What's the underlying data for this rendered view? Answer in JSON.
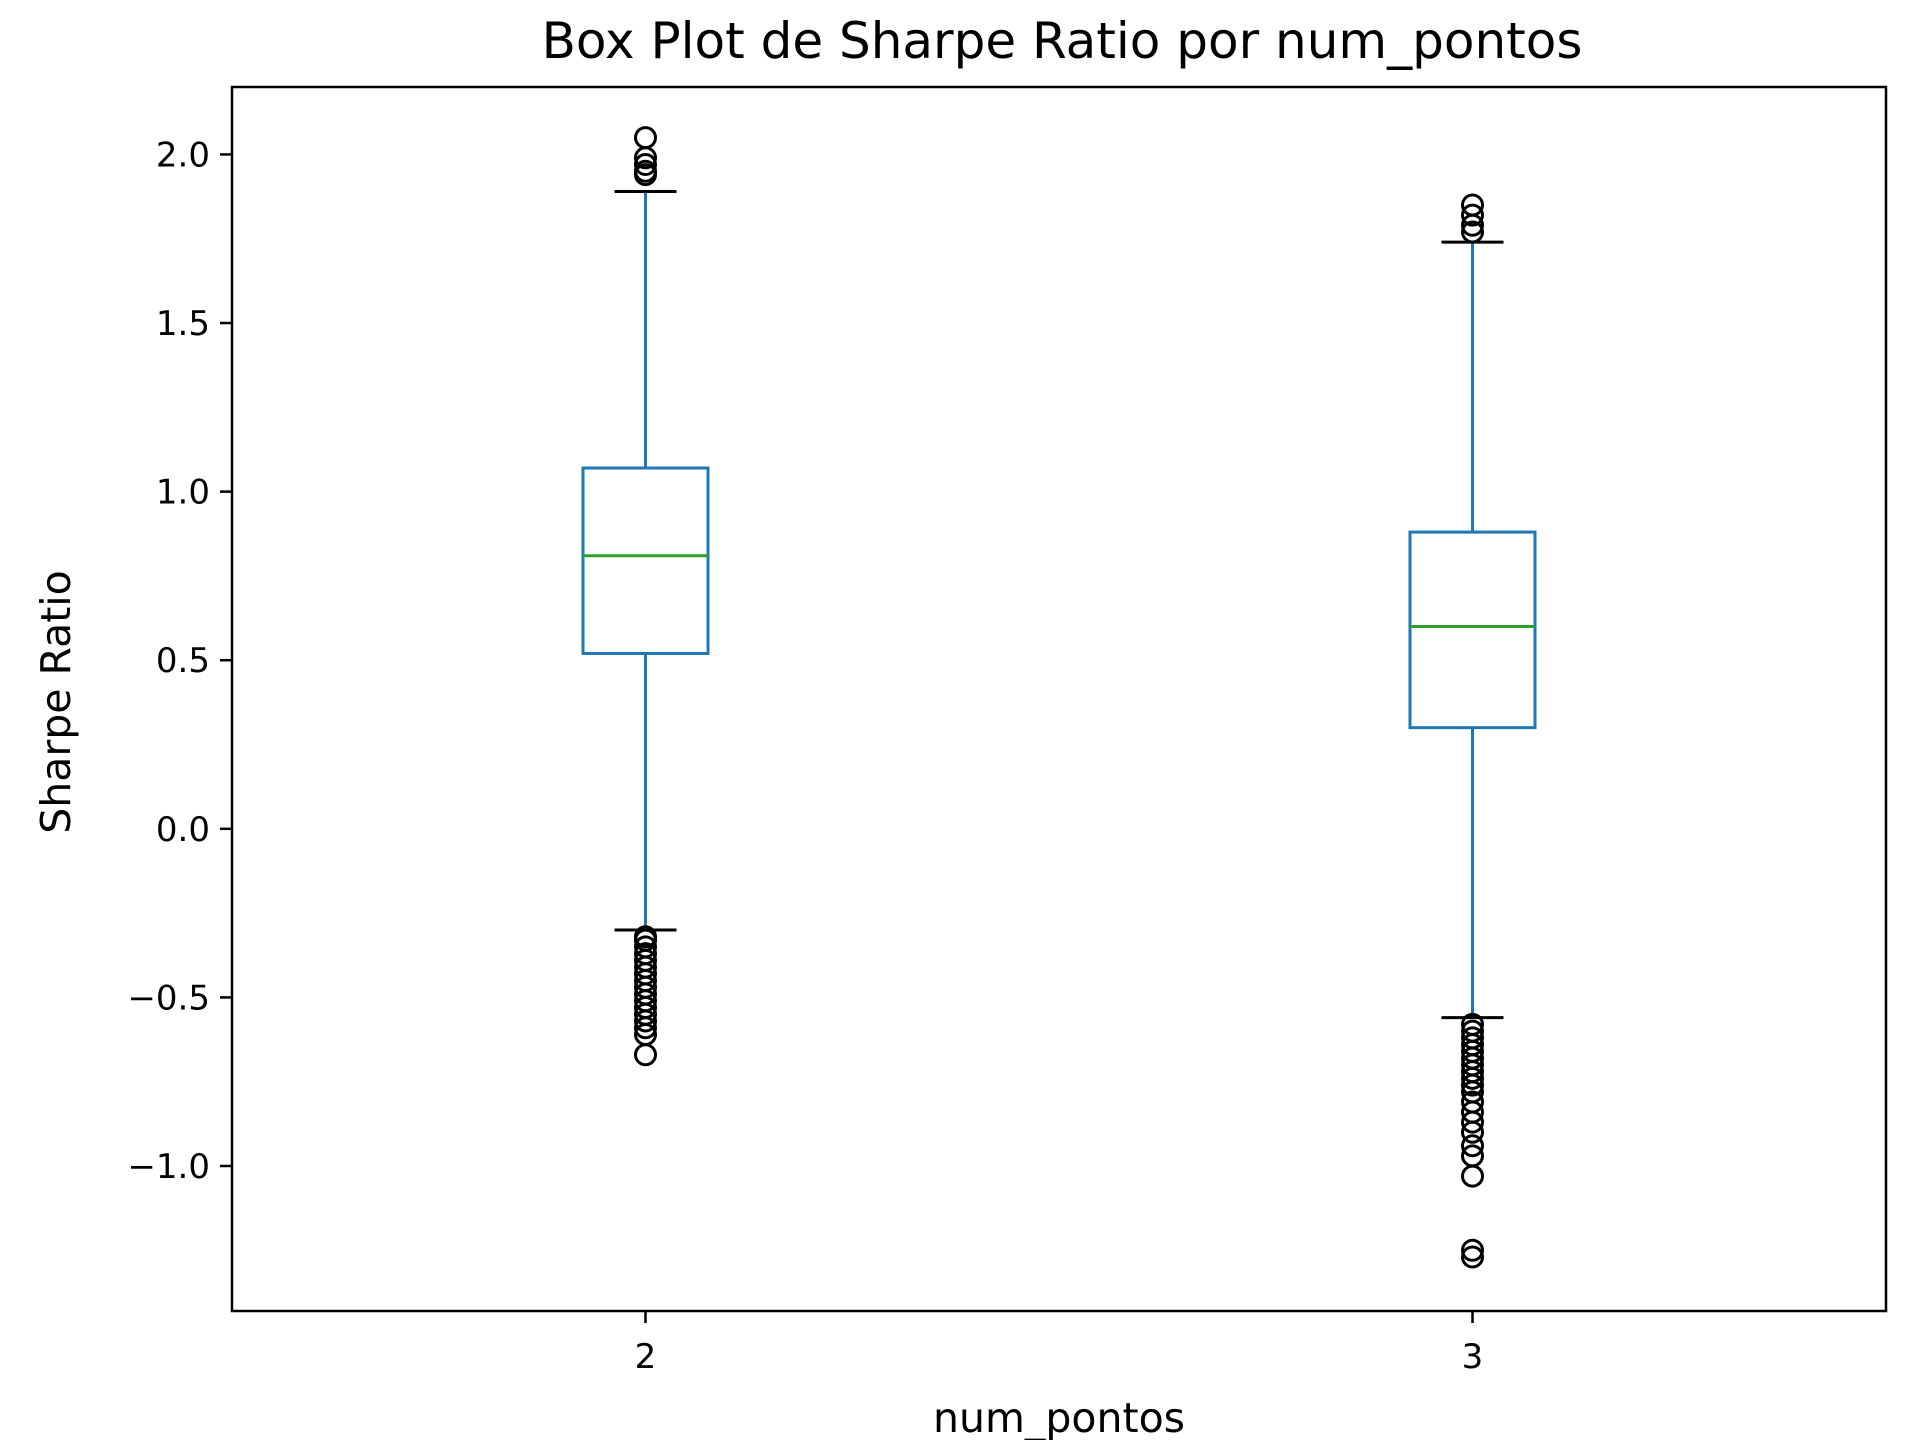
{
  "chart_data": {
    "type": "box",
    "title": "Box Plot de Sharpe Ratio por num_pontos",
    "xlabel": "num_pontos",
    "ylabel": "Sharpe Ratio",
    "ylim": [
      -1.43,
      2.2
    ],
    "yticks": [
      "2.0",
      "1.5",
      "1.0",
      "0.5",
      "0.0",
      "−0.5",
      "−1.0"
    ],
    "ytick_values": [
      2.0,
      1.5,
      1.0,
      0.5,
      0.0,
      -0.5,
      -1.0
    ],
    "categories": [
      "2",
      "3"
    ],
    "grid": false,
    "colors": {
      "box": "#1f77b4",
      "median": "#2ca02c",
      "cap": "#000000",
      "outlier": "#000000"
    },
    "boxes": [
      {
        "category": "2",
        "whisker_low": -0.3,
        "q1": 0.52,
        "median": 0.81,
        "q3": 1.07,
        "whisker_high": 1.89,
        "outliers": [
          2.05,
          1.99,
          1.97,
          1.95,
          1.94,
          -0.32,
          -0.33,
          -0.35,
          -0.37,
          -0.39,
          -0.41,
          -0.43,
          -0.45,
          -0.47,
          -0.49,
          -0.51,
          -0.53,
          -0.55,
          -0.57,
          -0.59,
          -0.61,
          -0.67
        ]
      },
      {
        "category": "3",
        "whisker_low": -0.56,
        "q1": 0.3,
        "median": 0.6,
        "q3": 0.88,
        "whisker_high": 1.74,
        "outliers": [
          1.85,
          1.82,
          1.79,
          1.77,
          -0.58,
          -0.6,
          -0.62,
          -0.64,
          -0.66,
          -0.68,
          -0.7,
          -0.72,
          -0.74,
          -0.76,
          -0.78,
          -0.81,
          -0.84,
          -0.87,
          -0.9,
          -0.94,
          -0.97,
          -1.03,
          -1.25,
          -1.27
        ]
      }
    ]
  }
}
